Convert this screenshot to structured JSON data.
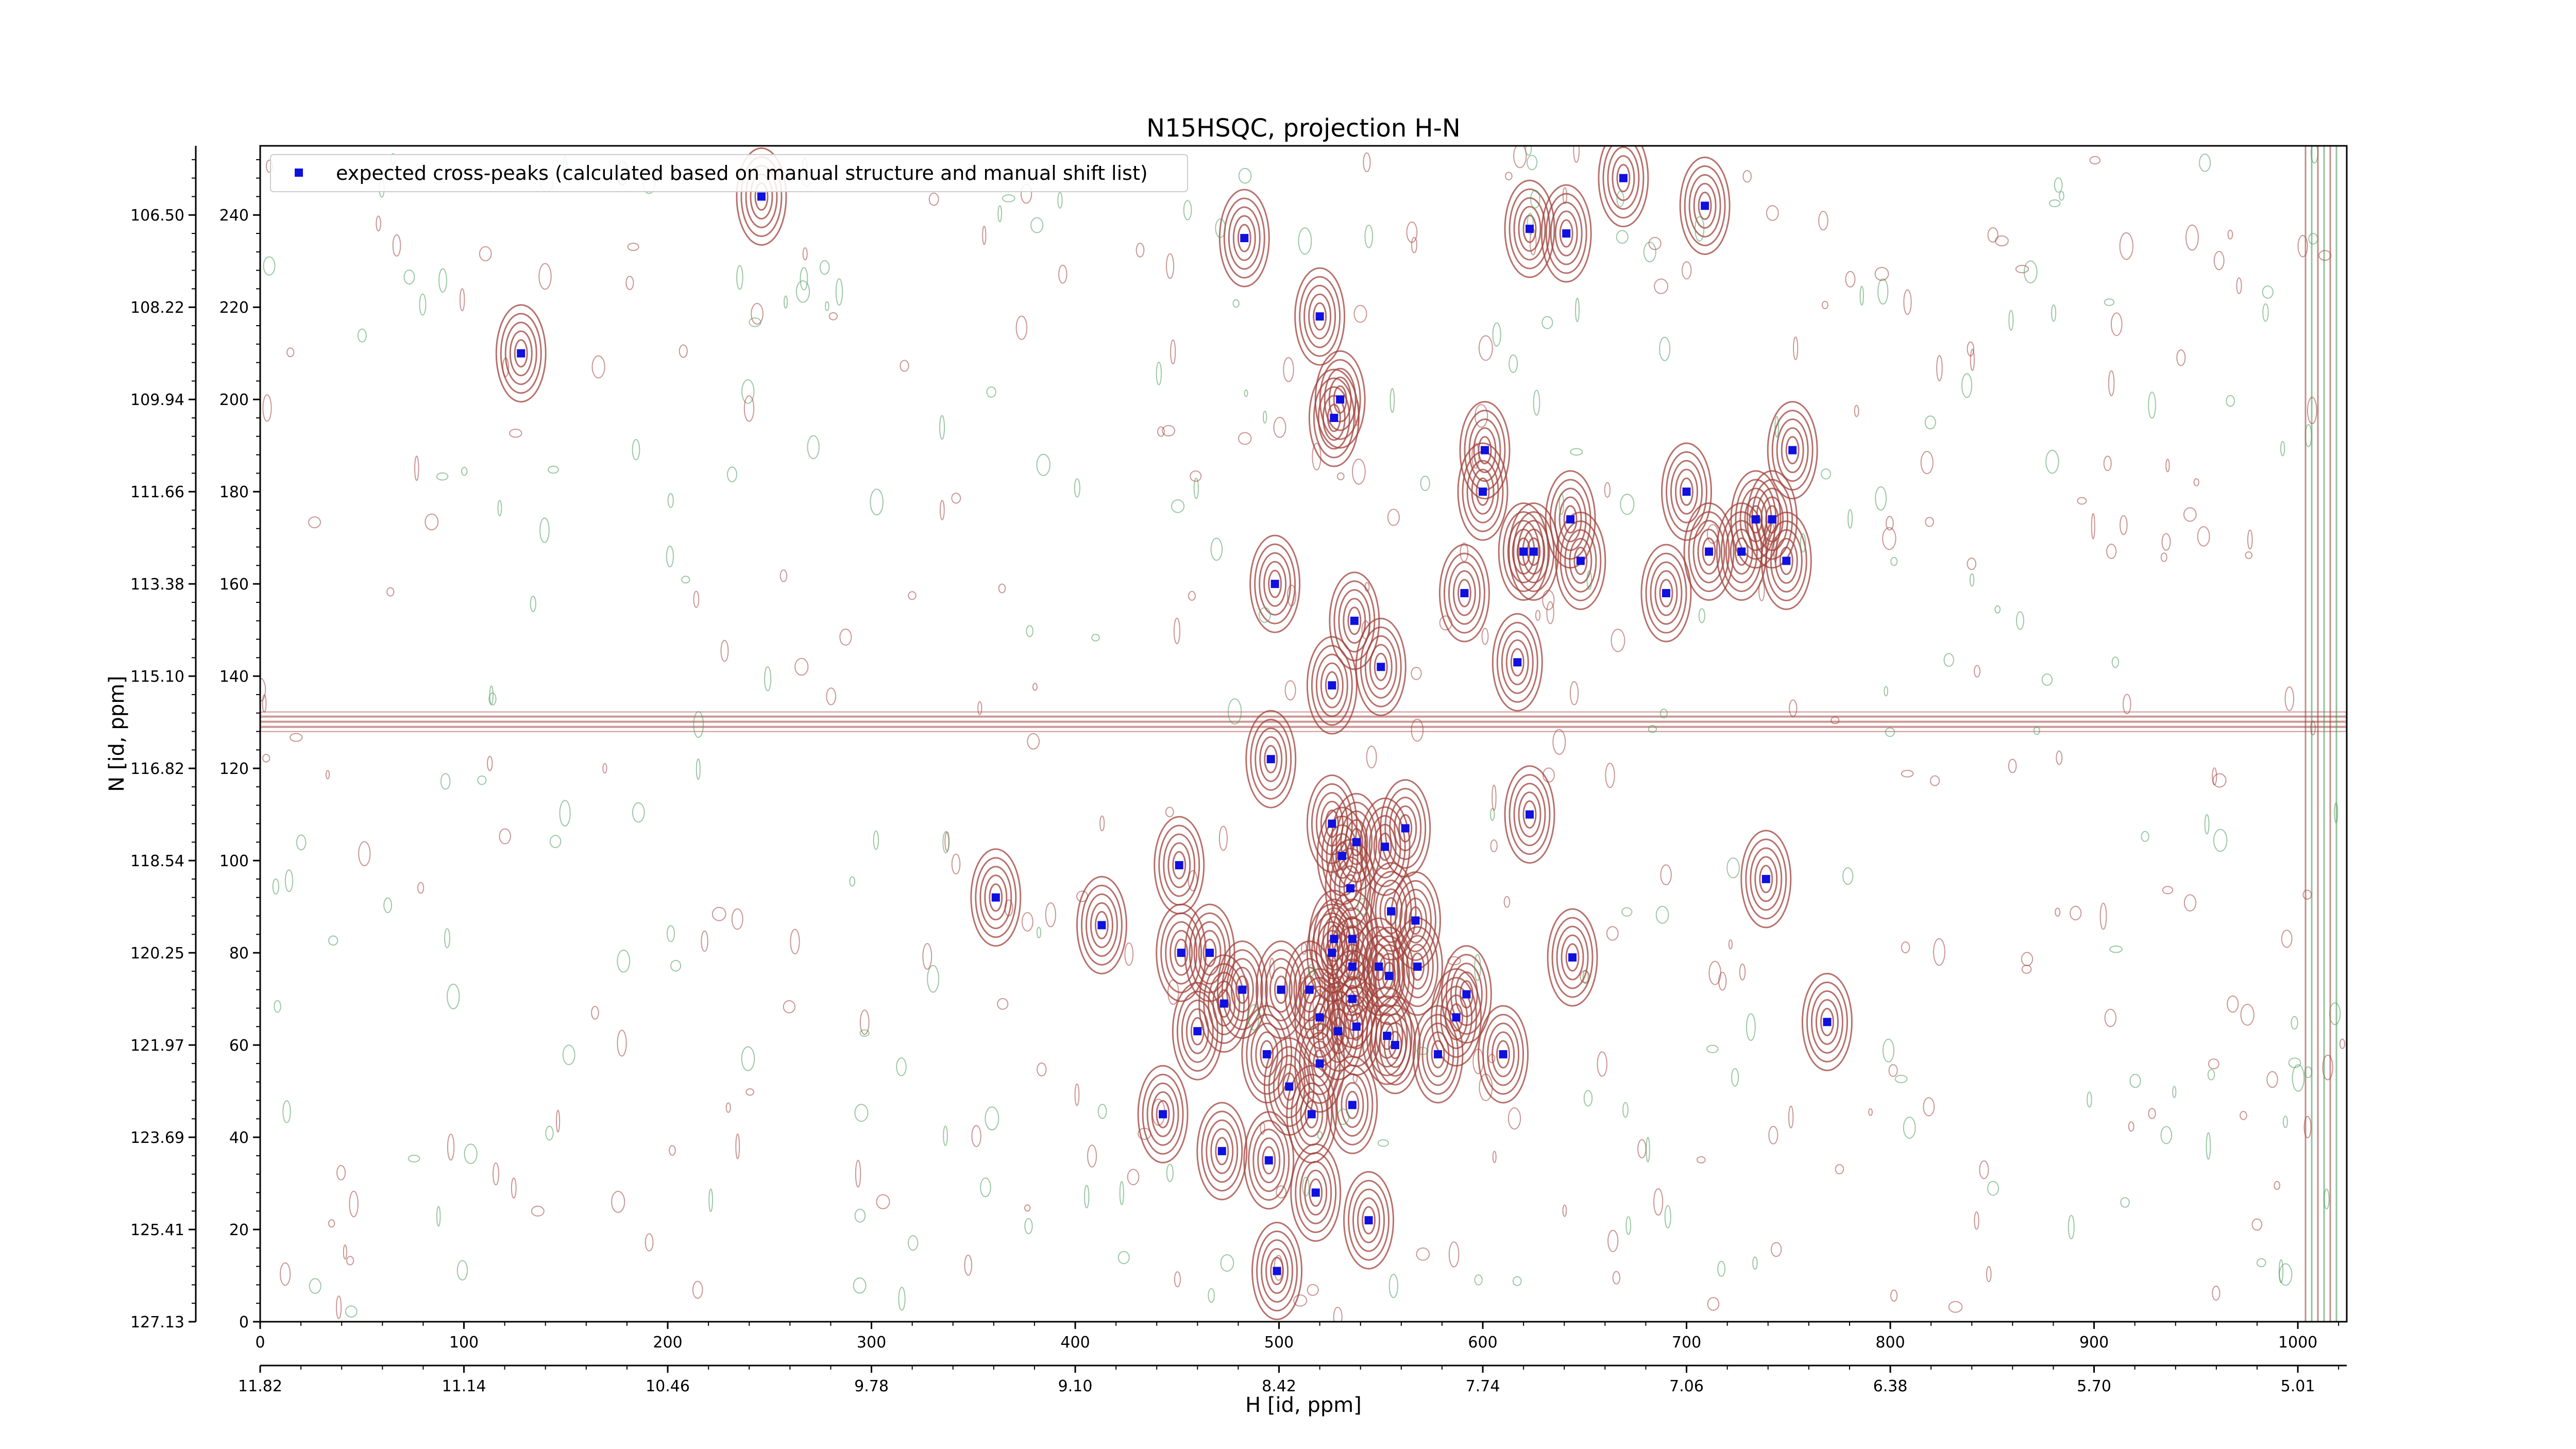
{
  "chart_data": {
    "type": "scatter",
    "title": "N15HSQC, projection H-N",
    "xlabel": "H [id, ppm]",
    "ylabel": "N [id, ppm]",
    "xlim": [
      0,
      1024
    ],
    "ylim": [
      0,
      255
    ],
    "x_ticks": [
      0,
      100,
      200,
      300,
      400,
      500,
      600,
      700,
      800,
      900,
      1000
    ],
    "y_ticks": [
      0,
      20,
      40,
      60,
      80,
      100,
      120,
      140,
      160,
      180,
      200,
      220,
      240
    ],
    "ppm_x_tick_labels": [
      "11.82",
      "11.14",
      "10.46",
      "9.78",
      "9.10",
      "8.42",
      "7.74",
      "7.06",
      "6.38",
      "5.70",
      "5.01"
    ],
    "ppm_y_tick_labels": [
      "127.13",
      "125.41",
      "123.69",
      "121.97",
      "120.25",
      "118.54",
      "116.82",
      "115.10",
      "113.38",
      "111.66",
      "109.94",
      "108.22",
      "106.50"
    ],
    "legend": {
      "position": "top-left",
      "label": "expected cross-peaks (calculated based on manual structure and manual shift list)"
    },
    "colors": {
      "positive_contours": "#a0403a",
      "negative_contours": "#4a9a5a",
      "markers": "#1010e0"
    },
    "series": [
      {
        "name": "expected cross-peaks (calculated based on manual structure and manual shift list)",
        "points": [
          [
            246,
            244
          ],
          [
            483,
            235
          ],
          [
            128,
            210
          ],
          [
            623,
            237
          ],
          [
            641,
            236
          ],
          [
            669,
            248
          ],
          [
            709,
            242
          ],
          [
            520,
            218
          ],
          [
            530,
            200
          ],
          [
            527,
            196
          ],
          [
            601,
            189
          ],
          [
            600,
            180
          ],
          [
            700,
            180
          ],
          [
            752,
            189
          ],
          [
            643,
            174
          ],
          [
            625,
            167
          ],
          [
            620,
            167
          ],
          [
            648,
            165
          ],
          [
            711,
            167
          ],
          [
            727,
            167
          ],
          [
            734,
            174
          ],
          [
            742,
            174
          ],
          [
            749,
            165
          ],
          [
            498,
            160
          ],
          [
            591,
            158
          ],
          [
            690,
            158
          ],
          [
            537,
            152
          ],
          [
            617,
            143
          ],
          [
            550,
            142
          ],
          [
            526,
            138
          ],
          [
            496,
            122
          ],
          [
            526,
            108
          ],
          [
            538,
            104
          ],
          [
            531,
            101
          ],
          [
            562,
            107
          ],
          [
            552,
            103
          ],
          [
            623,
            110
          ],
          [
            451,
            99
          ],
          [
            361,
            92
          ],
          [
            413,
            86
          ],
          [
            535,
            94
          ],
          [
            567,
            87
          ],
          [
            555,
            89
          ],
          [
            739,
            96
          ],
          [
            452,
            80
          ],
          [
            466,
            80
          ],
          [
            527,
            83
          ],
          [
            536,
            83
          ],
          [
            526,
            80
          ],
          [
            536,
            77
          ],
          [
            549,
            77
          ],
          [
            554,
            75
          ],
          [
            568,
            77
          ],
          [
            644,
            79
          ],
          [
            473,
            69
          ],
          [
            482,
            72
          ],
          [
            515,
            72
          ],
          [
            501,
            72
          ],
          [
            536,
            70
          ],
          [
            592,
            71
          ],
          [
            587,
            66
          ],
          [
            520,
            66
          ],
          [
            538,
            64
          ],
          [
            460,
            63
          ],
          [
            529,
            63
          ],
          [
            553,
            62
          ],
          [
            557,
            60
          ],
          [
            578,
            58
          ],
          [
            610,
            58
          ],
          [
            494,
            58
          ],
          [
            769,
            65
          ],
          [
            443,
            45
          ],
          [
            516,
            45
          ],
          [
            536,
            47
          ],
          [
            505,
            51
          ],
          [
            520,
            56
          ],
          [
            472,
            37
          ],
          [
            495,
            35
          ],
          [
            518,
            28
          ],
          [
            544,
            22
          ],
          [
            499,
            11
          ]
        ]
      }
    ]
  }
}
